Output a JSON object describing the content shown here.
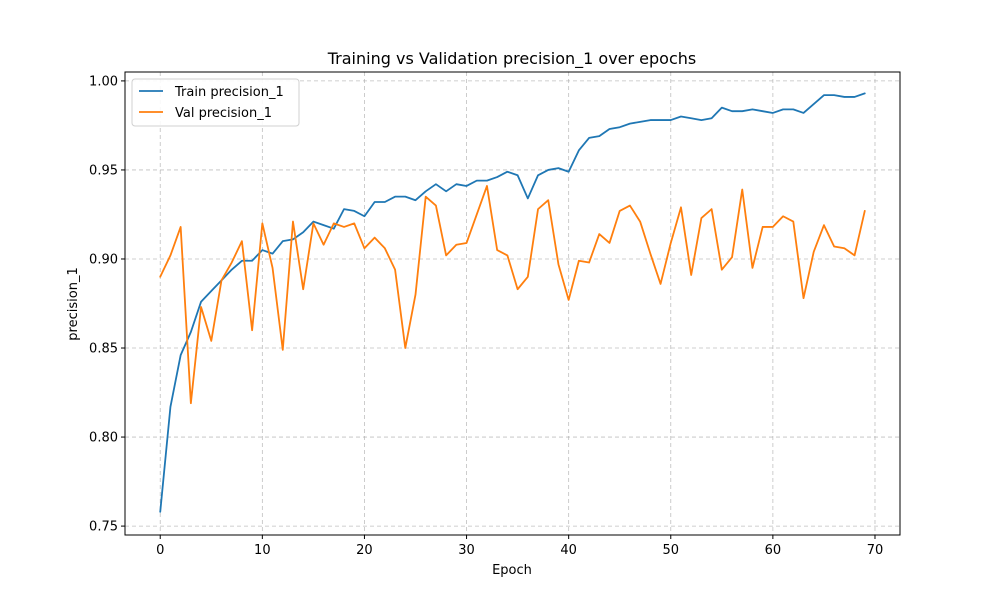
{
  "chart_data": {
    "type": "line",
    "title": "Training vs Validation precision_1 over epochs",
    "xlabel": "Epoch",
    "ylabel": "precision_1",
    "xlim": [
      -3.45,
      72.45
    ],
    "ylim": [
      0.745,
      1.005
    ],
    "xticks": [
      0,
      10,
      20,
      30,
      40,
      50,
      60,
      70
    ],
    "yticks": [
      0.75,
      0.8,
      0.85,
      0.9,
      0.95,
      1.0
    ],
    "ytick_labels": [
      "0.75",
      "0.80",
      "0.85",
      "0.90",
      "0.95",
      "1.00"
    ],
    "grid": true,
    "legend_position": "top-left",
    "x": [
      0,
      1,
      2,
      3,
      4,
      5,
      6,
      7,
      8,
      9,
      10,
      11,
      12,
      13,
      14,
      15,
      16,
      17,
      18,
      19,
      20,
      21,
      22,
      23,
      24,
      25,
      26,
      27,
      28,
      29,
      30,
      31,
      32,
      33,
      34,
      35,
      36,
      37,
      38,
      39,
      40,
      41,
      42,
      43,
      44,
      45,
      46,
      47,
      48,
      49,
      50,
      51,
      52,
      53,
      54,
      55,
      56,
      57,
      58,
      59,
      60,
      61,
      62,
      63,
      64,
      65,
      66,
      67,
      68,
      69
    ],
    "series": [
      {
        "name": "Train precision_1",
        "color": "#1f77b4",
        "values": [
          0.758,
          0.817,
          0.846,
          0.859,
          0.876,
          0.882,
          0.888,
          0.894,
          0.899,
          0.899,
          0.905,
          0.903,
          0.91,
          0.911,
          0.915,
          0.921,
          0.919,
          0.917,
          0.928,
          0.927,
          0.924,
          0.932,
          0.932,
          0.935,
          0.935,
          0.933,
          0.938,
          0.942,
          0.938,
          0.942,
          0.941,
          0.944,
          0.944,
          0.946,
          0.949,
          0.947,
          0.934,
          0.947,
          0.95,
          0.951,
          0.949,
          0.961,
          0.968,
          0.969,
          0.973,
          0.974,
          0.976,
          0.977,
          0.978,
          0.978,
          0.978,
          0.98,
          0.979,
          0.978,
          0.979,
          0.985,
          0.983,
          0.983,
          0.984,
          0.983,
          0.982,
          0.984,
          0.984,
          0.982,
          0.987,
          0.992,
          0.992,
          0.991,
          0.991,
          0.993
        ]
      },
      {
        "name": "Val precision_1",
        "color": "#ff7f0e",
        "values": [
          0.89,
          0.902,
          0.918,
          0.819,
          0.873,
          0.854,
          0.888,
          0.898,
          0.91,
          0.86,
          0.92,
          0.895,
          0.849,
          0.921,
          0.883,
          0.92,
          0.908,
          0.92,
          0.918,
          0.92,
          0.906,
          0.912,
          0.906,
          0.894,
          0.85,
          0.88,
          0.935,
          0.93,
          0.902,
          0.908,
          0.909,
          0.925,
          0.941,
          0.905,
          0.902,
          0.883,
          0.89,
          0.928,
          0.933,
          0.897,
          0.877,
          0.899,
          0.898,
          0.914,
          0.909,
          0.927,
          0.93,
          0.921,
          0.903,
          0.886,
          0.909,
          0.929,
          0.891,
          0.923,
          0.928,
          0.894,
          0.901,
          0.939,
          0.895,
          0.918,
          0.918,
          0.924,
          0.921,
          0.878,
          0.904,
          0.919,
          0.907,
          0.906,
          0.902,
          0.927
        ]
      }
    ]
  }
}
